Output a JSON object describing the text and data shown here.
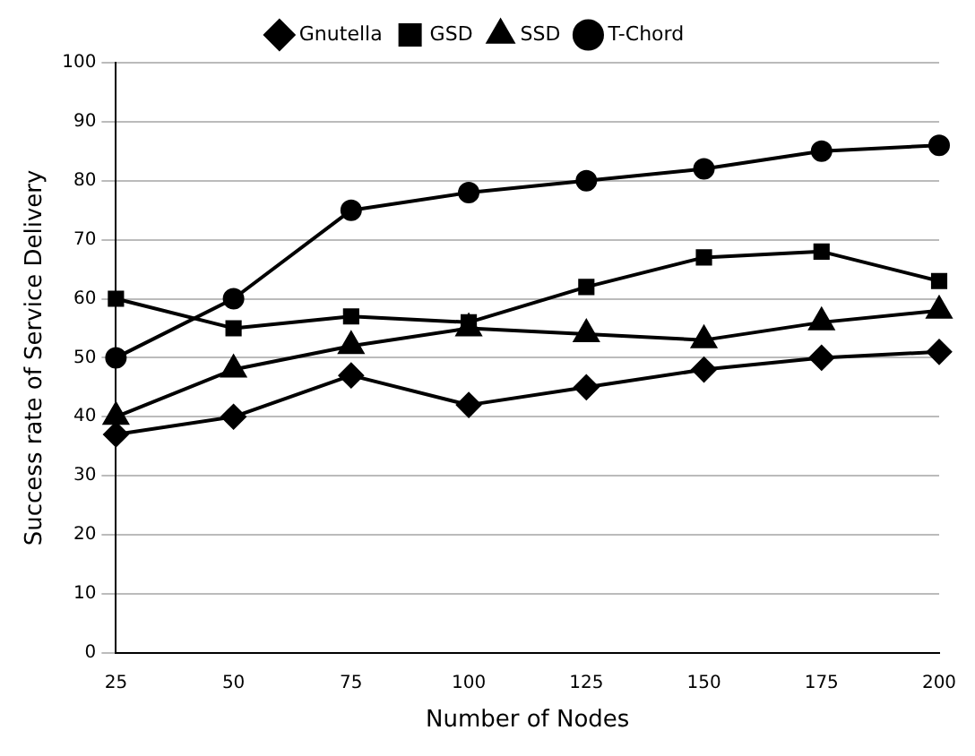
{
  "chart_data": {
    "type": "line",
    "xlabel": "Number of Nodes",
    "ylabel": "Success rate of Service Delivery",
    "categories": [
      "25",
      "50",
      "75",
      "100",
      "125",
      "150",
      "175",
      "200"
    ],
    "ylim": [
      0,
      100
    ],
    "yticks": [
      0,
      10,
      20,
      30,
      40,
      50,
      60,
      70,
      80,
      90,
      100
    ],
    "grid": "y",
    "legend": "top",
    "series": [
      {
        "name": "Gnutella",
        "color": "#000000",
        "marker": "diamond",
        "values": [
          37,
          40,
          47,
          42,
          45,
          48,
          50,
          51
        ]
      },
      {
        "name": "GSD",
        "color": "#000000",
        "marker": "square",
        "values": [
          60,
          55,
          57,
          56,
          62,
          67,
          68,
          63
        ]
      },
      {
        "name": "SSD",
        "color": "#000000",
        "marker": "triangle",
        "values": [
          40,
          48,
          52,
          55,
          54,
          53,
          56,
          58
        ]
      },
      {
        "name": "T-Chord",
        "color": "#000000",
        "marker": "circle",
        "values": [
          50,
          60,
          75,
          78,
          80,
          82,
          85,
          86
        ]
      }
    ]
  }
}
